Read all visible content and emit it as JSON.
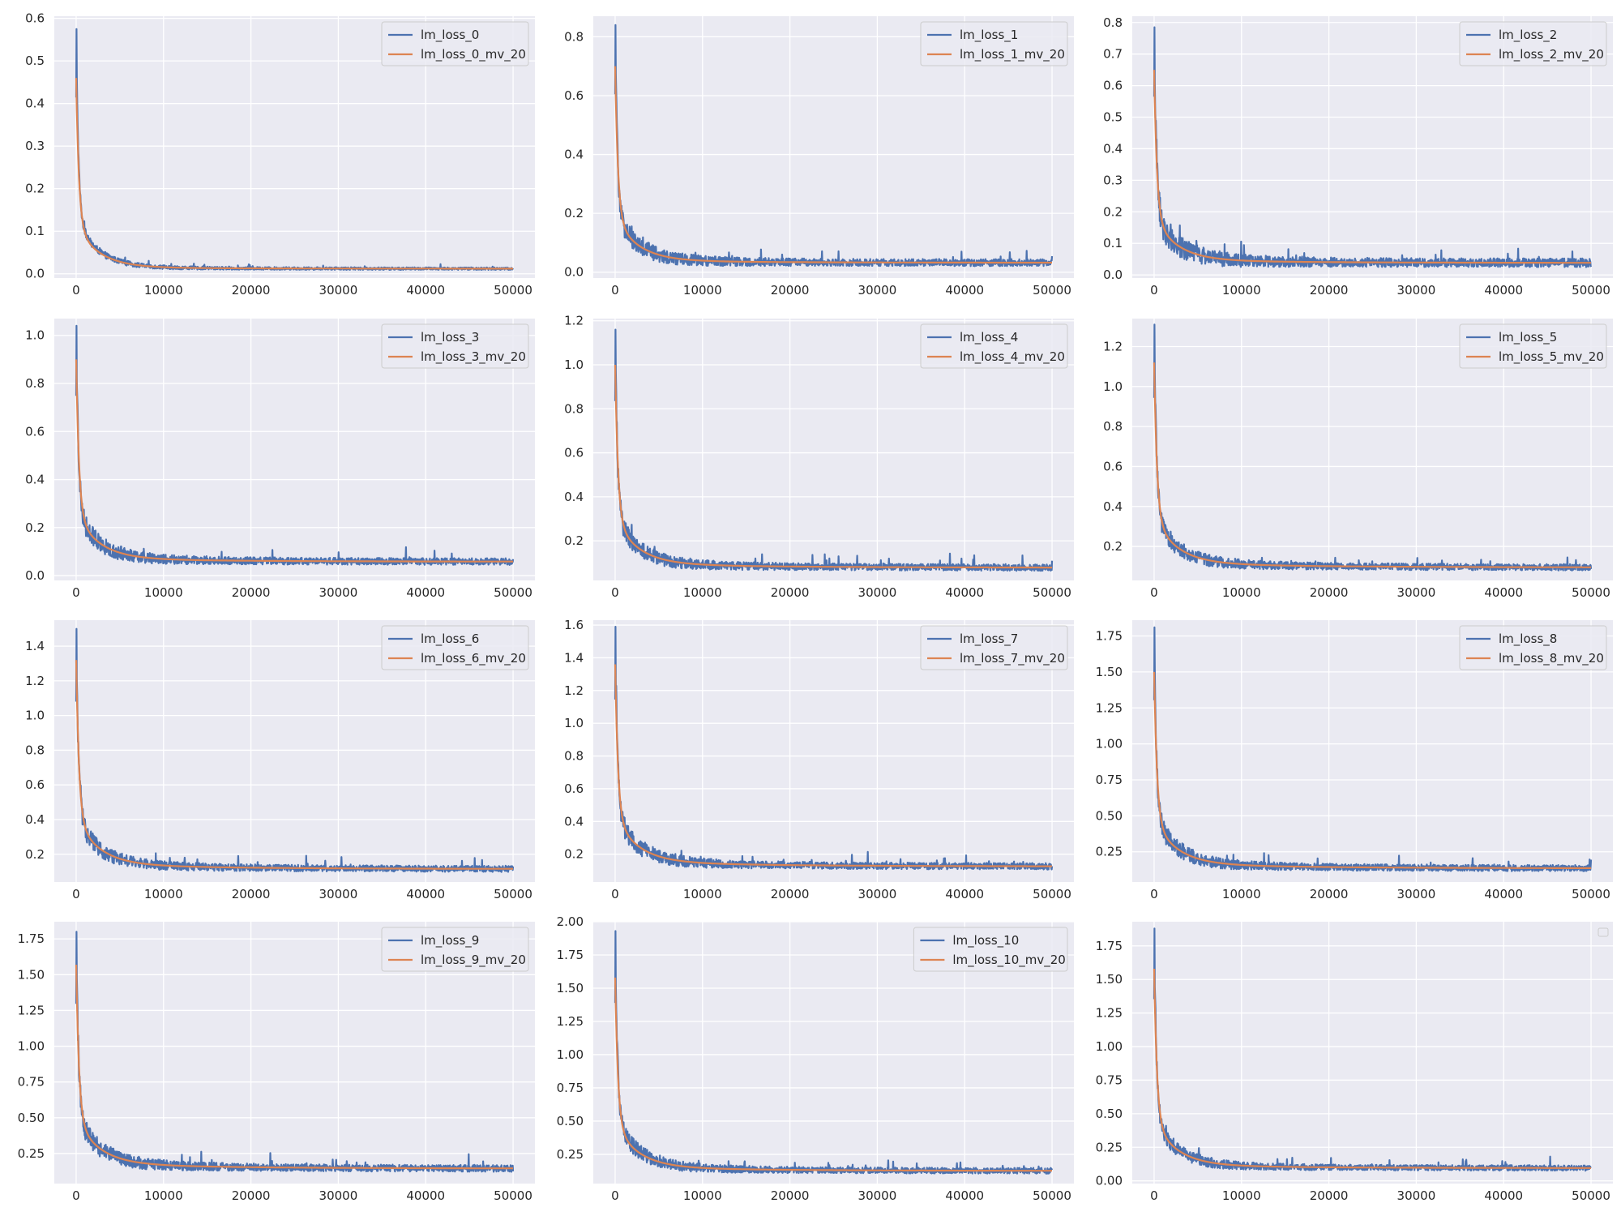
{
  "colors": {
    "background": "#eaeaf2",
    "grid": "#ffffff",
    "raw": "#4c72b0",
    "smooth": "#dd8452",
    "text": "#262626"
  },
  "chart_data": [
    {
      "type": "line",
      "x_range": [
        0,
        50000
      ],
      "xticks": [
        0,
        10000,
        20000,
        30000,
        40000,
        50000
      ],
      "xtick_labels": [
        "0",
        "10000",
        "20000",
        "30000",
        "40000",
        "50000"
      ],
      "ylim": [
        -0.01,
        0.605
      ],
      "yticks": [
        0,
        0.1,
        0.2,
        0.3,
        0.4,
        0.5,
        0.6
      ],
      "ytick_labels": [
        "0.0",
        "0.1",
        "0.2",
        "0.3",
        "0.4",
        "0.5",
        "0.6"
      ],
      "legend": "top-right",
      "grid": true,
      "peak": 0.575,
      "smooth_peak": 0.46,
      "final": 0.012,
      "noise": 0.003,
      "series": [
        {
          "name": "lm_loss_0",
          "role": "raw"
        },
        {
          "name": "lm_loss_0_mv_20",
          "role": "smooth"
        }
      ]
    },
    {
      "type": "line",
      "x_range": [
        0,
        50000
      ],
      "xticks": [
        0,
        10000,
        20000,
        30000,
        40000,
        50000
      ],
      "xtick_labels": [
        "0",
        "10000",
        "20000",
        "30000",
        "40000",
        "50000"
      ],
      "ylim": [
        -0.02,
        0.87
      ],
      "yticks": [
        0,
        0.2,
        0.4,
        0.6,
        0.8
      ],
      "ytick_labels": [
        "0.0",
        "0.2",
        "0.4",
        "0.6",
        "0.8"
      ],
      "legend": "top-right",
      "grid": true,
      "peak": 0.84,
      "smooth_peak": 0.7,
      "final": 0.032,
      "noise": 0.012,
      "series": [
        {
          "name": "lm_loss_1",
          "role": "raw"
        },
        {
          "name": "lm_loss_1_mv_20",
          "role": "smooth"
        }
      ]
    },
    {
      "type": "line",
      "x_range": [
        0,
        50000
      ],
      "xticks": [
        0,
        10000,
        20000,
        30000,
        40000,
        50000
      ],
      "xtick_labels": [
        "0",
        "10000",
        "20000",
        "30000",
        "40000",
        "50000"
      ],
      "ylim": [
        -0.01,
        0.82
      ],
      "yticks": [
        0,
        0.1,
        0.2,
        0.3,
        0.4,
        0.5,
        0.6,
        0.7,
        0.8
      ],
      "ytick_labels": [
        "0.0",
        "0.1",
        "0.2",
        "0.3",
        "0.4",
        "0.5",
        "0.6",
        "0.7",
        "0.8"
      ],
      "legend": "top-right",
      "grid": true,
      "peak": 0.785,
      "smooth_peak": 0.65,
      "final": 0.038,
      "noise": 0.014,
      "series": [
        {
          "name": "lm_loss_2",
          "role": "raw"
        },
        {
          "name": "lm_loss_2_mv_20",
          "role": "smooth"
        }
      ]
    },
    {
      "type": "line",
      "x_range": [
        0,
        50000
      ],
      "xticks": [
        0,
        10000,
        20000,
        30000,
        40000,
        50000
      ],
      "xtick_labels": [
        "0",
        "10000",
        "20000",
        "30000",
        "40000",
        "50000"
      ],
      "ylim": [
        -0.02,
        1.07
      ],
      "yticks": [
        0,
        0.2,
        0.4,
        0.6,
        0.8,
        1.0
      ],
      "ytick_labels": [
        "0.0",
        "0.2",
        "0.4",
        "0.6",
        "0.8",
        "1.0"
      ],
      "legend": "top-right",
      "grid": true,
      "peak": 1.04,
      "smooth_peak": 0.9,
      "final": 0.058,
      "noise": 0.014,
      "series": [
        {
          "name": "lm_loss_3",
          "role": "raw"
        },
        {
          "name": "lm_loss_3_mv_20",
          "role": "smooth"
        }
      ]
    },
    {
      "type": "line",
      "x_range": [
        0,
        50000
      ],
      "xticks": [
        0,
        10000,
        20000,
        30000,
        40000,
        50000
      ],
      "xtick_labels": [
        "0",
        "10000",
        "20000",
        "30000",
        "40000",
        "50000"
      ],
      "ylim": [
        0.02,
        1.21
      ],
      "yticks": [
        0.2,
        0.4,
        0.6,
        0.8,
        1.0,
        1.2
      ],
      "ytick_labels": [
        "0.2",
        "0.4",
        "0.6",
        "0.8",
        "1.0",
        "1.2"
      ],
      "legend": "top-right",
      "grid": true,
      "peak": 1.16,
      "smooth_peak": 1.0,
      "final": 0.078,
      "noise": 0.015,
      "series": [
        {
          "name": "lm_loss_4",
          "role": "raw"
        },
        {
          "name": "lm_loss_4_mv_20",
          "role": "smooth"
        }
      ]
    },
    {
      "type": "line",
      "x_range": [
        0,
        50000
      ],
      "xticks": [
        0,
        10000,
        20000,
        30000,
        40000,
        50000
      ],
      "xtick_labels": [
        "0",
        "10000",
        "20000",
        "30000",
        "40000",
        "50000"
      ],
      "ylim": [
        0.03,
        1.34
      ],
      "yticks": [
        0.2,
        0.4,
        0.6,
        0.8,
        1.0,
        1.2
      ],
      "ytick_labels": [
        "0.2",
        "0.4",
        "0.6",
        "0.8",
        "1.0",
        "1.2"
      ],
      "legend": "top-right",
      "grid": true,
      "peak": 1.31,
      "smooth_peak": 1.12,
      "final": 0.095,
      "noise": 0.016,
      "series": [
        {
          "name": "lm_loss_5",
          "role": "raw"
        },
        {
          "name": "lm_loss_5_mv_20",
          "role": "smooth"
        }
      ]
    },
    {
      "type": "line",
      "x_range": [
        0,
        50000
      ],
      "xticks": [
        0,
        10000,
        20000,
        30000,
        40000,
        50000
      ],
      "xtick_labels": [
        "0",
        "10000",
        "20000",
        "30000",
        "40000",
        "50000"
      ],
      "ylim": [
        0.04,
        1.55
      ],
      "yticks": [
        0.2,
        0.4,
        0.6,
        0.8,
        1.0,
        1.2,
        1.4
      ],
      "ytick_labels": [
        "0.2",
        "0.4",
        "0.6",
        "0.8",
        "1.0",
        "1.2",
        "1.4"
      ],
      "legend": "top-right",
      "grid": true,
      "peak": 1.5,
      "smooth_peak": 1.32,
      "final": 0.115,
      "noise": 0.018,
      "series": [
        {
          "name": "lm_loss_6",
          "role": "raw"
        },
        {
          "name": "lm_loss_6_mv_20",
          "role": "smooth"
        }
      ]
    },
    {
      "type": "line",
      "x_range": [
        0,
        50000
      ],
      "xticks": [
        0,
        10000,
        20000,
        30000,
        40000,
        50000
      ],
      "xtick_labels": [
        "0",
        "10000",
        "20000",
        "30000",
        "40000",
        "50000"
      ],
      "ylim": [
        0.03,
        1.63
      ],
      "yticks": [
        0.2,
        0.4,
        0.6,
        0.8,
        1.0,
        1.2,
        1.4,
        1.6
      ],
      "ytick_labels": [
        "0.2",
        "0.4",
        "0.6",
        "0.8",
        "1.0",
        "1.2",
        "1.4",
        "1.6"
      ],
      "legend": "top-right",
      "grid": true,
      "peak": 1.59,
      "smooth_peak": 1.36,
      "final": 0.125,
      "noise": 0.02,
      "series": [
        {
          "name": "lm_loss_7",
          "role": "raw"
        },
        {
          "name": "lm_loss_7_mv_20",
          "role": "smooth"
        }
      ]
    },
    {
      "type": "line",
      "x_range": [
        0,
        50000
      ],
      "xticks": [
        0,
        10000,
        20000,
        30000,
        40000,
        50000
      ],
      "xtick_labels": [
        "0",
        "10000",
        "20000",
        "30000",
        "40000",
        "50000"
      ],
      "ylim": [
        0.04,
        1.86
      ],
      "yticks": [
        0.25,
        0.5,
        0.75,
        1.0,
        1.25,
        1.5,
        1.75
      ],
      "ytick_labels": [
        "0.25",
        "0.50",
        "0.75",
        "1.00",
        "1.25",
        "1.50",
        "1.75"
      ],
      "legend": "top-right",
      "grid": true,
      "peak": 1.81,
      "smooth_peak": 1.5,
      "final": 0.135,
      "noise": 0.022,
      "series": [
        {
          "name": "lm_loss_8",
          "role": "raw"
        },
        {
          "name": "lm_loss_8_mv_20",
          "role": "smooth"
        }
      ]
    },
    {
      "type": "line",
      "x_range": [
        0,
        50000
      ],
      "xticks": [
        0,
        10000,
        20000,
        30000,
        40000,
        50000
      ],
      "xtick_labels": [
        "0",
        "10000",
        "20000",
        "30000",
        "40000",
        "50000"
      ],
      "ylim": [
        0.04,
        1.87
      ],
      "yticks": [
        0.25,
        0.5,
        0.75,
        1.0,
        1.25,
        1.5,
        1.75
      ],
      "ytick_labels": [
        "0.25",
        "0.50",
        "0.75",
        "1.00",
        "1.25",
        "1.50",
        "1.75"
      ],
      "legend": "top-right",
      "grid": true,
      "peak": 1.8,
      "smooth_peak": 1.57,
      "final": 0.145,
      "noise": 0.024,
      "series": [
        {
          "name": "lm_loss_9",
          "role": "raw"
        },
        {
          "name": "lm_loss_9_mv_20",
          "role": "smooth"
        }
      ]
    },
    {
      "type": "line",
      "x_range": [
        0,
        50000
      ],
      "xticks": [
        0,
        10000,
        20000,
        30000,
        40000,
        50000
      ],
      "xtick_labels": [
        "0",
        "10000",
        "20000",
        "30000",
        "40000",
        "50000"
      ],
      "ylim": [
        0.03,
        2.0
      ],
      "yticks": [
        0.25,
        0.5,
        0.75,
        1.0,
        1.25,
        1.5,
        1.75,
        2.0
      ],
      "ytick_labels": [
        "0.25",
        "0.50",
        "0.75",
        "1.00",
        "1.25",
        "1.50",
        "1.75",
        "2.00"
      ],
      "legend": "top-right",
      "grid": true,
      "peak": 1.93,
      "smooth_peak": 1.58,
      "final": 0.125,
      "noise": 0.022,
      "series": [
        {
          "name": "lm_loss_10",
          "role": "raw"
        },
        {
          "name": "lm_loss_10_mv_20",
          "role": "smooth"
        }
      ]
    },
    {
      "type": "line",
      "x_range": [
        0,
        50000
      ],
      "xticks": [
        0,
        10000,
        20000,
        30000,
        40000,
        50000
      ],
      "xtick_labels": [
        "0",
        "10000",
        "20000",
        "30000",
        "40000",
        "50000"
      ],
      "ylim": [
        -0.02,
        1.93
      ],
      "yticks": [
        0,
        0.25,
        0.5,
        0.75,
        1.0,
        1.25,
        1.5,
        1.75
      ],
      "ytick_labels": [
        "0.00",
        "0.25",
        "0.50",
        "0.75",
        "1.00",
        "1.25",
        "1.50",
        "1.75"
      ],
      "legend": "top-right",
      "grid": true,
      "legend_empty": true,
      "peak": 1.88,
      "smooth_peak": 1.58,
      "final": 0.095,
      "noise": 0.02,
      "series": [
        {
          "role": "raw"
        },
        {
          "role": "smooth"
        }
      ]
    }
  ]
}
